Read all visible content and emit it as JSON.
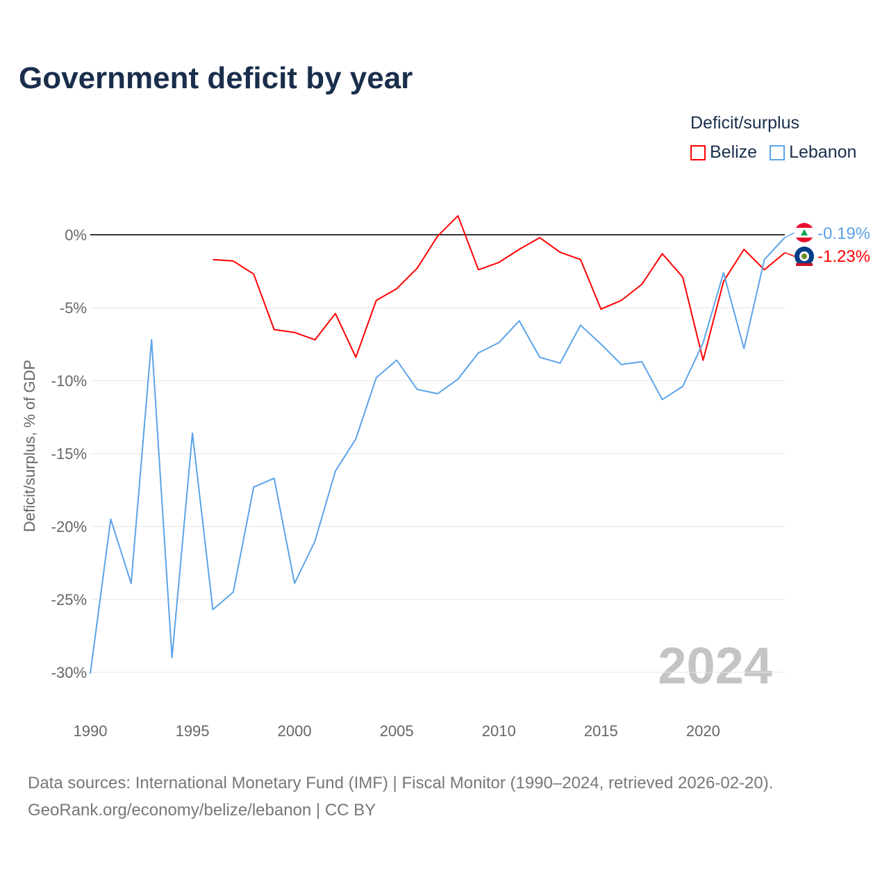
{
  "chart_data": {
    "type": "line",
    "title": "Government deficit by year",
    "ylabel": "Deficit/surplus, % of GDP",
    "xlabel": "",
    "ylim": [
      -32,
      3
    ],
    "xlim": [
      1990,
      2024
    ],
    "yticks": [
      0,
      -5,
      -10,
      -15,
      -20,
      -25,
      -30
    ],
    "ytick_labels": [
      "0%",
      "-5%",
      "-10%",
      "-15%",
      "-20%",
      "-25%",
      "-30%"
    ],
    "xticks": [
      1990,
      1995,
      2000,
      2005,
      2010,
      2015,
      2020
    ],
    "xtick_labels": [
      "1990",
      "1995",
      "2000",
      "2005",
      "2010",
      "2015",
      "2020"
    ],
    "legend_title": "Deficit/surplus",
    "legend_position": "top-right",
    "year_watermark": "2024",
    "grid": true,
    "series": [
      {
        "name": "Belize",
        "color": "#ff0000",
        "end_label": "-1.23%",
        "x": [
          1996,
          1997,
          1998,
          1999,
          2000,
          2001,
          2002,
          2003,
          2004,
          2005,
          2006,
          2007,
          2008,
          2009,
          2010,
          2011,
          2012,
          2013,
          2014,
          2015,
          2016,
          2017,
          2018,
          2019,
          2020,
          2021,
          2022,
          2023,
          2024
        ],
        "values": [
          -1.7,
          -1.8,
          -2.7,
          -6.5,
          -6.7,
          -7.2,
          -5.4,
          -8.4,
          -4.5,
          -3.7,
          -2.3,
          -0.1,
          1.3,
          -2.4,
          -1.9,
          -1.0,
          -0.2,
          -1.2,
          -1.7,
          -5.1,
          -4.5,
          -3.4,
          -1.3,
          -2.9,
          -8.6,
          -3.2,
          -1.0,
          -2.4,
          -1.23
        ]
      },
      {
        "name": "Lebanon",
        "color": "#5ba3e8",
        "end_label": "-0.19%",
        "x": [
          1990,
          1991,
          1992,
          1993,
          1994,
          1995,
          1996,
          1997,
          1998,
          1999,
          2000,
          2001,
          2002,
          2003,
          2004,
          2005,
          2006,
          2007,
          2008,
          2009,
          2010,
          2011,
          2012,
          2013,
          2014,
          2015,
          2016,
          2017,
          2018,
          2019,
          2020,
          2021,
          2022,
          2023,
          2024
        ],
        "values": [
          -30.1,
          -19.5,
          -23.9,
          -7.2,
          -29.0,
          -13.6,
          -25.7,
          -24.5,
          -17.3,
          -16.7,
          -23.9,
          -21.0,
          -16.2,
          -14.0,
          -9.8,
          -8.6,
          -10.6,
          -10.9,
          -9.9,
          -8.1,
          -7.4,
          -5.9,
          -8.4,
          -8.8,
          -6.2,
          -7.5,
          -8.9,
          -8.7,
          -11.3,
          -10.4,
          -7.4,
          -2.6,
          -7.8,
          -1.7,
          -0.19
        ]
      }
    ]
  },
  "footer": {
    "line1": "Data sources: International Monetary Fund (IMF) | Fiscal Monitor (1990–2024, retrieved 2026-02-20).",
    "line2": "GeoRank.org/economy/belize/lebanon | CC BY"
  }
}
